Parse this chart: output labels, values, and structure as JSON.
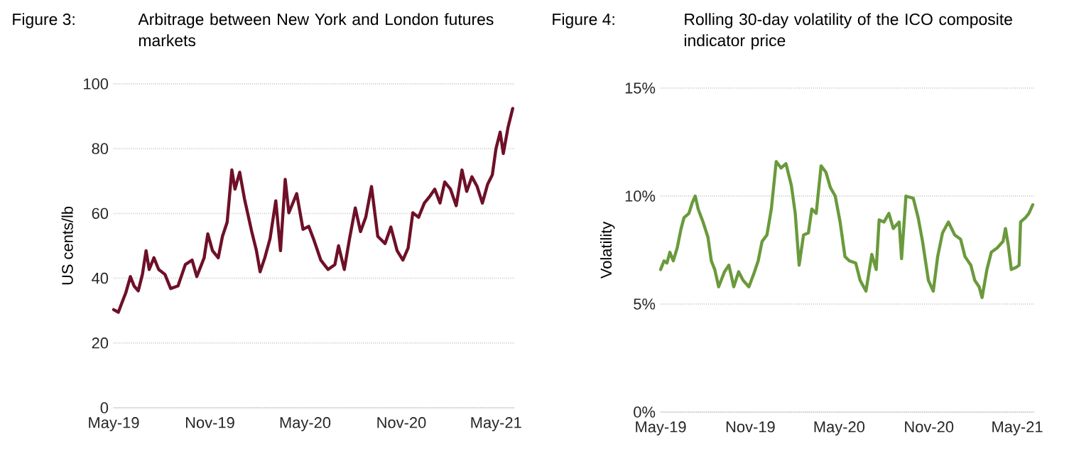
{
  "chart_data": [
    {
      "type": "line",
      "title": "Arbitrage between New York and London futures markets",
      "annotations": [
        "Figure 3:"
      ],
      "ylabel": "US cents/lb",
      "color": "#6e1028",
      "grid": "y",
      "xlim": [
        "2019-05-01",
        "2021-06-05"
      ],
      "ylim": [
        0,
        100
      ],
      "yticks": [
        0,
        20,
        40,
        60,
        80,
        100
      ],
      "xticks": [
        {
          "value": "2019-05-01",
          "label": "May-19"
        },
        {
          "value": "2019-11-01",
          "label": "Nov-19"
        },
        {
          "value": "2020-05-01",
          "label": "May-20"
        },
        {
          "value": "2020-11-01",
          "label": "Nov-20"
        },
        {
          "value": "2021-05-01",
          "label": "May-21"
        }
      ],
      "x": [
        "2019-05-01",
        "2019-05-10",
        "2019-05-17",
        "2019-05-24",
        "2019-06-02",
        "2019-06-09",
        "2019-06-17",
        "2019-06-25",
        "2019-07-02",
        "2019-07-08",
        "2019-07-17",
        "2019-07-26",
        "2019-08-07",
        "2019-08-18",
        "2019-09-01",
        "2019-09-15",
        "2019-09-28",
        "2019-10-07",
        "2019-10-21",
        "2019-10-28",
        "2019-11-06",
        "2019-11-17",
        "2019-11-25",
        "2019-12-04",
        "2019-12-13",
        "2019-12-19",
        "2019-12-28",
        "2020-01-06",
        "2020-01-20",
        "2020-01-29",
        "2020-02-05",
        "2020-02-14",
        "2020-02-24",
        "2020-03-06",
        "2020-03-15",
        "2020-03-24",
        "2020-03-31",
        "2020-04-15",
        "2020-04-27",
        "2020-05-08",
        "2020-05-17",
        "2020-05-31",
        "2020-06-14",
        "2020-06-27",
        "2020-07-04",
        "2020-07-15",
        "2020-07-25",
        "2020-08-05",
        "2020-08-15",
        "2020-08-25",
        "2020-09-05",
        "2020-09-17",
        "2020-10-01",
        "2020-10-12",
        "2020-10-24",
        "2020-11-04",
        "2020-11-14",
        "2020-11-23",
        "2020-12-04",
        "2020-12-15",
        "2020-12-26",
        "2021-01-04",
        "2021-01-14",
        "2021-01-23",
        "2021-02-03",
        "2021-02-14",
        "2021-02-25",
        "2021-03-06",
        "2021-03-16",
        "2021-03-26",
        "2021-04-05",
        "2021-04-15",
        "2021-04-24",
        "2021-05-01",
        "2021-05-09",
        "2021-05-15",
        "2021-05-24",
        "2021-06-02"
      ],
      "values": [
        30.3,
        29.5,
        32.5,
        35.4,
        40.5,
        37.6,
        36.1,
        41.2,
        48.5,
        42.7,
        46.3,
        42.7,
        41.2,
        36.8,
        37.6,
        44.2,
        45.6,
        40.5,
        46.3,
        53.7,
        48.5,
        46.3,
        52.9,
        57.3,
        73.4,
        67.5,
        72.7,
        64.6,
        54.4,
        48.5,
        42,
        46.3,
        52.2,
        63.9,
        48.5,
        70.5,
        60.2,
        66.1,
        55.1,
        56,
        52.2,
        45.6,
        42.7,
        44.2,
        50,
        42.7,
        52.2,
        61.7,
        54.4,
        58.8,
        68.3,
        52.9,
        50.7,
        55.8,
        48.5,
        45.6,
        49.3,
        60.2,
        58.8,
        63.2,
        65.4,
        67.5,
        63.2,
        69.7,
        67.5,
        62.4,
        73.4,
        66.8,
        71.3,
        68.3,
        63.2,
        69,
        71.9,
        80,
        85.1,
        78.5,
        86.5,
        92.4
      ]
    },
    {
      "type": "line",
      "title": "Rolling 30-day volatility of the ICO composite indicator price",
      "annotations": [
        "Figure 4:"
      ],
      "ylabel": "Volatility",
      "color": "#6a9a3c",
      "grid": "y",
      "xlim": [
        "2019-05-01",
        "2021-06-05"
      ],
      "ylim": [
        0,
        15
      ],
      "yticks": [
        {
          "value": 0,
          "label": "0%"
        },
        {
          "value": 5,
          "label": "5%"
        },
        {
          "value": 10,
          "label": "10%"
        },
        {
          "value": 15,
          "label": "15%"
        }
      ],
      "xticks": [
        {
          "value": "2019-05-01",
          "label": "May-19"
        },
        {
          "value": "2019-11-01",
          "label": "Nov-19"
        },
        {
          "value": "2020-05-01",
          "label": "May-20"
        },
        {
          "value": "2020-11-01",
          "label": "Nov-20"
        },
        {
          "value": "2021-05-01",
          "label": "May-21"
        }
      ],
      "x": [
        "2019-05-01",
        "2019-05-08",
        "2019-05-14",
        "2019-05-20",
        "2019-05-27",
        "2019-06-04",
        "2019-06-12",
        "2019-06-18",
        "2019-06-28",
        "2019-07-05",
        "2019-07-11",
        "2019-07-17",
        "2019-07-27",
        "2019-08-06",
        "2019-08-13",
        "2019-08-20",
        "2019-08-28",
        "2019-09-09",
        "2019-09-18",
        "2019-09-28",
        "2019-10-08",
        "2019-10-17",
        "2019-10-29",
        "2019-11-08",
        "2019-11-17",
        "2019-11-25",
        "2019-12-05",
        "2019-12-14",
        "2019-12-24",
        "2020-01-03",
        "2020-01-13",
        "2020-01-24",
        "2020-02-01",
        "2020-02-09",
        "2020-02-18",
        "2020-02-28",
        "2020-03-06",
        "2020-03-15",
        "2020-03-25",
        "2020-04-04",
        "2020-04-13",
        "2020-04-23",
        "2020-05-03",
        "2020-05-13",
        "2020-05-22",
        "2020-06-04",
        "2020-06-13",
        "2020-06-25",
        "2020-07-07",
        "2020-07-16",
        "2020-07-22",
        "2020-08-01",
        "2020-08-11",
        "2020-08-20",
        "2020-09-01",
        "2020-09-06",
        "2020-09-15",
        "2020-09-30",
        "2020-10-10",
        "2020-10-19",
        "2020-10-31",
        "2020-11-10",
        "2020-11-19",
        "2020-11-29",
        "2020-12-11",
        "2020-12-24",
        "2021-01-05",
        "2021-01-14",
        "2021-01-26",
        "2021-02-03",
        "2021-02-12",
        "2021-02-18",
        "2021-02-28",
        "2021-03-09",
        "2021-03-21",
        "2021-04-02",
        "2021-04-07",
        "2021-04-13",
        "2021-04-19",
        "2021-04-29",
        "2021-05-05",
        "2021-05-08",
        "2021-05-18",
        "2021-05-25",
        "2021-06-02"
      ],
      "values": [
        6.6,
        7.0,
        6.9,
        7.4,
        7.0,
        7.6,
        8.5,
        9.0,
        9.2,
        9.7,
        10.0,
        9.4,
        8.8,
        8.1,
        7.0,
        6.6,
        5.8,
        6.5,
        6.8,
        5.8,
        6.5,
        6.1,
        5.8,
        6.4,
        7.0,
        7.9,
        8.2,
        9.4,
        11.6,
        11.3,
        11.5,
        10.5,
        9.2,
        6.8,
        8.2,
        8.3,
        9.4,
        9.2,
        11.4,
        11.1,
        10.4,
        10.0,
        8.8,
        7.2,
        7.0,
        6.9,
        6.1,
        5.6,
        7.3,
        6.6,
        8.9,
        8.8,
        9.2,
        8.5,
        8.8,
        7.1,
        10.0,
        9.9,
        9.0,
        7.9,
        6.1,
        5.6,
        7.2,
        8.3,
        8.8,
        8.2,
        8.0,
        7.2,
        6.8,
        6.1,
        5.8,
        5.3,
        6.6,
        7.4,
        7.6,
        7.9,
        8.5,
        7.7,
        6.6,
        6.7,
        6.8,
        8.8,
        9.0,
        9.2,
        9.6
      ]
    }
  ]
}
